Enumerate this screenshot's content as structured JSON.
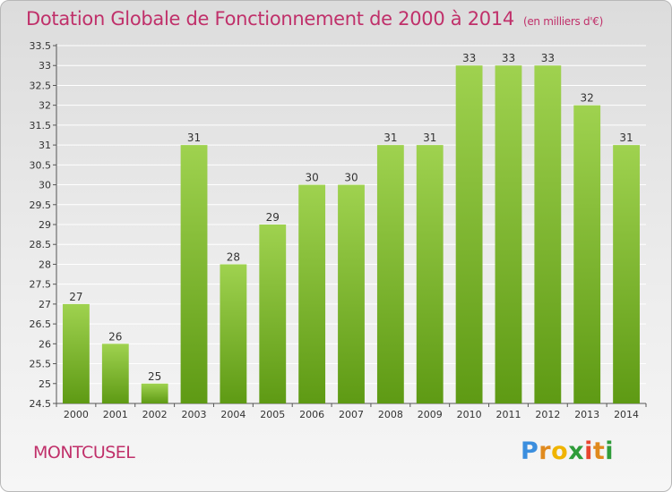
{
  "header": {
    "title": "Dotation Globale de Fonctionnement de 2000 à 2014",
    "unit": "(en milliers d'€)"
  },
  "commune": "MONTCUSEL",
  "logo": {
    "letters": [
      "P",
      "r",
      "o",
      "x",
      "i",
      "t",
      "i"
    ],
    "colors": [
      "#3b8ede",
      "#e08a1e",
      "#f0b400",
      "#2f9c3a",
      "#e8452e",
      "#e08a1e",
      "#2f9c3a"
    ]
  },
  "colors": {
    "bar_light": "#9fd24f",
    "bar_dark": "#5e9a14",
    "grid": "#ffffff",
    "text": "#333333",
    "accent": "#c0306a"
  },
  "chart_data": {
    "type": "bar",
    "categories": [
      "2000",
      "2001",
      "2002",
      "2003",
      "2004",
      "2005",
      "2006",
      "2007",
      "2008",
      "2009",
      "2010",
      "2011",
      "2012",
      "2013",
      "2014"
    ],
    "values": [
      27,
      26,
      25,
      31,
      28,
      29,
      30,
      30,
      31,
      31,
      33,
      33,
      33,
      32,
      31
    ],
    "data_labels": [
      "27",
      "26",
      "25",
      "31",
      "28",
      "29",
      "30",
      "30",
      "31",
      "31",
      "33",
      "33",
      "33",
      "32",
      "31"
    ],
    "yticks": [
      "24.5",
      "25",
      "25.5",
      "26",
      "26.5",
      "27",
      "27.5",
      "28",
      "28.5",
      "29",
      "29.5",
      "30",
      "30.5",
      "31",
      "31.5",
      "32",
      "32.5",
      "33",
      "33.5"
    ],
    "ylim": [
      24.5,
      33.5
    ],
    "grid": true,
    "legend": "none"
  }
}
